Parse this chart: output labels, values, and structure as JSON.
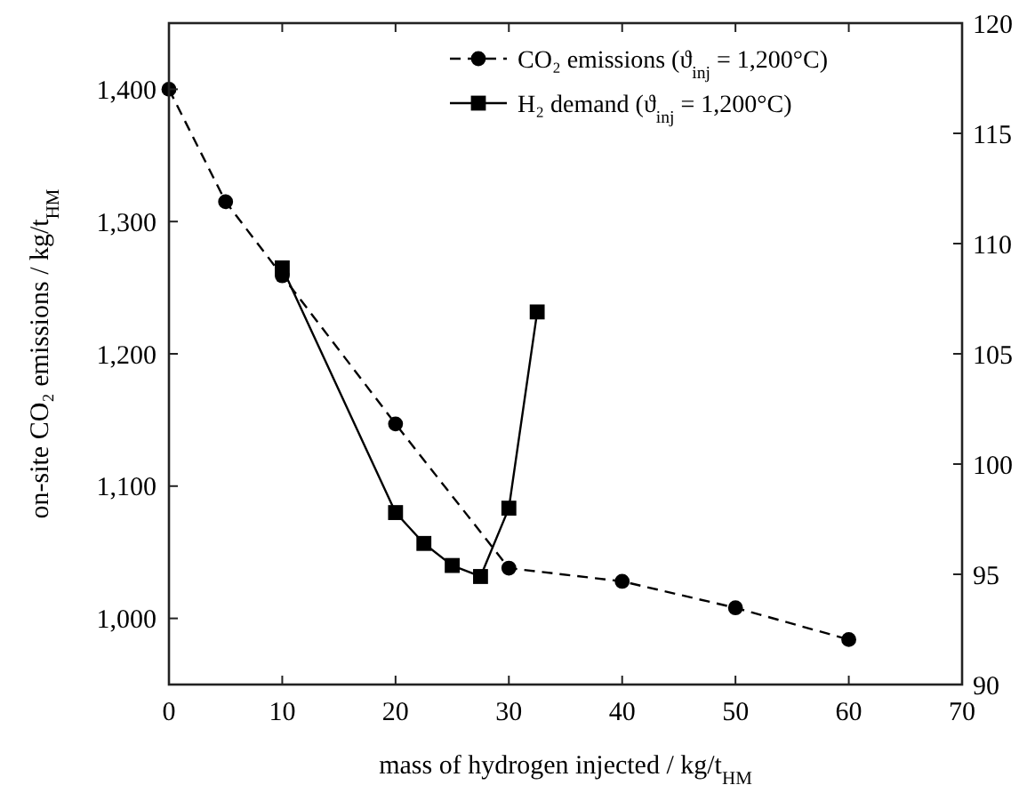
{
  "chart_data": {
    "type": "line",
    "xlabel": "mass of hydrogen injected / kg/t$_{HM}$",
    "ylabel": "on-site CO₂ emissions / kg/t$_{HM}$",
    "xlim": [
      0,
      70
    ],
    "xticks": [
      0,
      10,
      20,
      30,
      40,
      50,
      60,
      70
    ],
    "ylim": [
      950,
      1450
    ],
    "yticks": [
      {
        "value": 1000,
        "label": "1,000"
      },
      {
        "value": 1100,
        "label": "1,100"
      },
      {
        "value": 1200,
        "label": "1,200"
      },
      {
        "value": 1300,
        "label": "1,300"
      },
      {
        "value": 1400,
        "label": "1,400"
      }
    ],
    "y2lim": [
      90,
      120
    ],
    "y2ticks": [
      90,
      95,
      100,
      105,
      110,
      115,
      120
    ],
    "grid": false,
    "legend": "top right",
    "series": [
      {
        "name": "CO₂ emissions (ϑ$_{inj}$ = 1,200°C)",
        "color": "#000000",
        "marker": "circle",
        "line_style": "dashed",
        "x": [
          0,
          5,
          10,
          20,
          30,
          40,
          50,
          60
        ],
        "values": [
          1400,
          1315,
          1259,
          1147,
          1038,
          1028,
          1008,
          984
        ]
      },
      {
        "name": "H₂ demand (ϑ$_{inj}$ = 1,200°C)",
        "color": "#000000",
        "marker": "square",
        "line_style": "solid",
        "axis": "y2",
        "x": [
          10,
          20,
          22.5,
          25,
          27.5,
          30,
          32.5
        ],
        "values": [
          108.9,
          97.8,
          96.4,
          95.4,
          94.9,
          98.0,
          106.9
        ]
      }
    ]
  }
}
